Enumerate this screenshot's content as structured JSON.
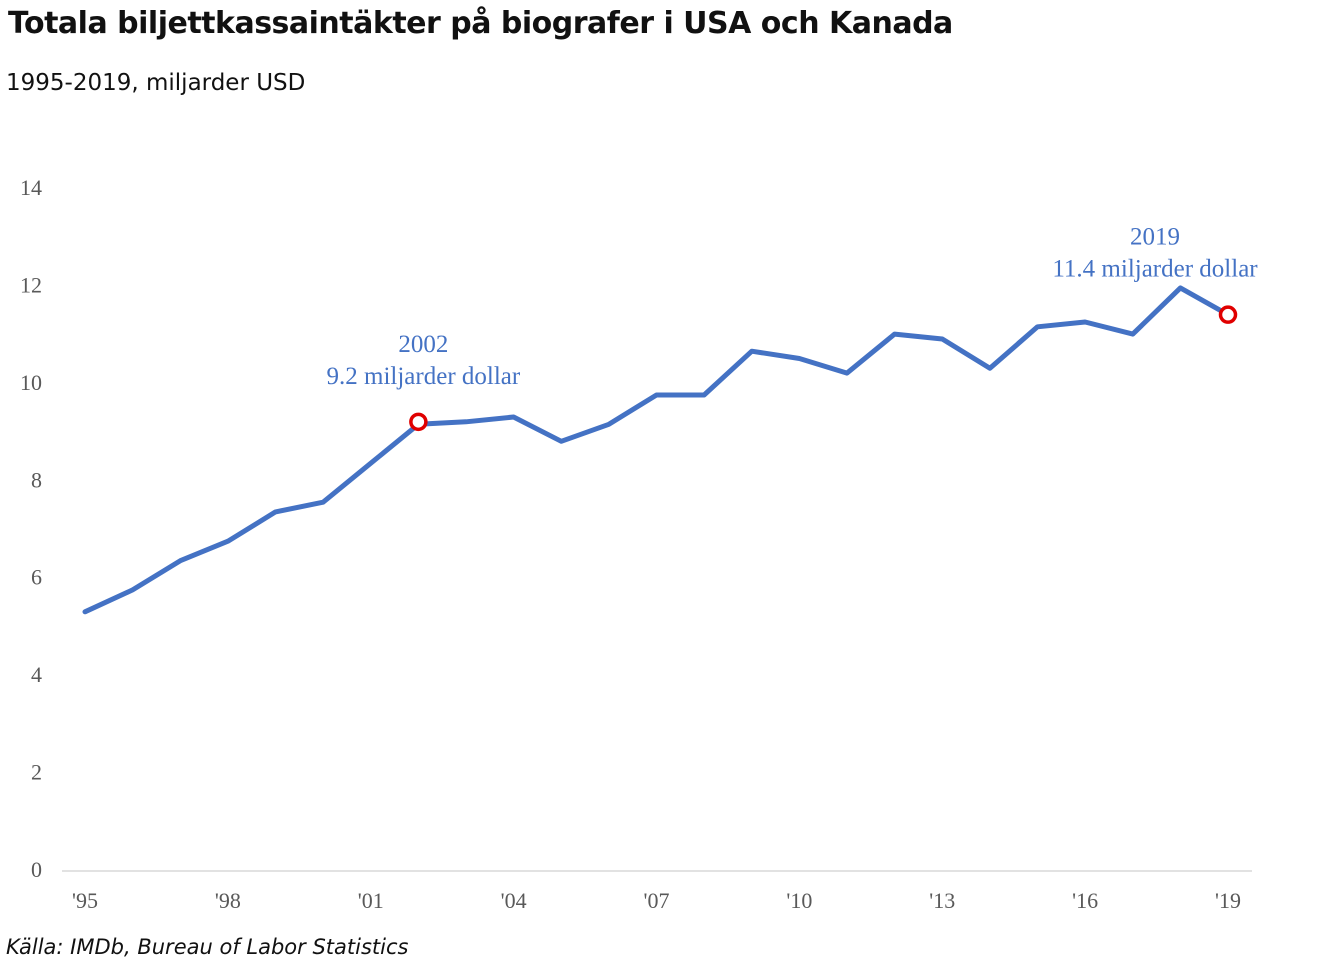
{
  "chart_data": {
    "type": "line",
    "title": "Totala biljettkassaintäkter på biografer i USA och Kanada",
    "subtitle": "1995-2019, miljarder USD",
    "source": "Källa: IMDb, Bureau of Labor Statistics",
    "xlabel": "",
    "ylabel": "",
    "ylim": [
      0,
      14
    ],
    "yticks": [
      0,
      2,
      4,
      6,
      8,
      10,
      12,
      14
    ],
    "xticks": [
      {
        "x": 1995,
        "label": "'95"
      },
      {
        "x": 1998,
        "label": "'98"
      },
      {
        "x": 2001,
        "label": "'01"
      },
      {
        "x": 2004,
        "label": "'04"
      },
      {
        "x": 2007,
        "label": "'07"
      },
      {
        "x": 2010,
        "label": "'10"
      },
      {
        "x": 2013,
        "label": "'13"
      },
      {
        "x": 2016,
        "label": "'16"
      },
      {
        "x": 2019,
        "label": "'19"
      }
    ],
    "grid": false,
    "series": [
      {
        "color": "#4472c4",
        "x": [
          1995,
          1996,
          1997,
          1998,
          1999,
          2000,
          2001,
          2002,
          2003,
          2004,
          2005,
          2006,
          2007,
          2008,
          2009,
          2010,
          2011,
          2012,
          2013,
          2014,
          2015,
          2016,
          2017,
          2018,
          2019
        ],
        "y": [
          5.3,
          5.75,
          6.35,
          6.75,
          7.35,
          7.55,
          8.35,
          9.15,
          9.2,
          9.3,
          8.8,
          9.15,
          9.75,
          9.75,
          10.65,
          10.5,
          10.2,
          11.0,
          10.9,
          10.3,
          11.15,
          11.25,
          11.0,
          11.95,
          11.4
        ]
      }
    ],
    "highlights": [
      {
        "x": 2002,
        "y": 9.2,
        "year_label": "2002",
        "value_label": "9.2 miljarder  dollar",
        "marker_color": "#e00000"
      },
      {
        "x": 2019,
        "y": 11.4,
        "year_label": "2019",
        "value_label": "11.4 miljarder  dollar",
        "marker_color": "#e00000"
      }
    ]
  }
}
